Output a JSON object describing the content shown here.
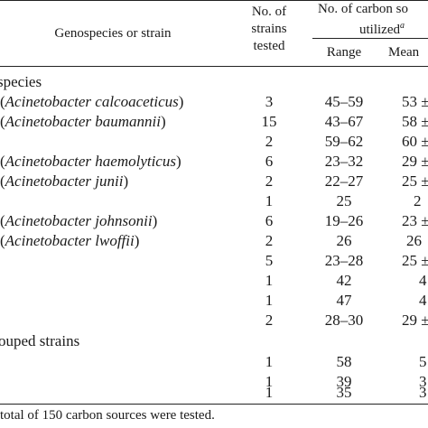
{
  "table": {
    "headers": {
      "strain": "Genospecies or strain",
      "tested_line1": "No. of",
      "tested_line2": "strains",
      "tested_line3": "tested",
      "carbon_line1": "No. of carbon so",
      "carbon_line2": "utilized",
      "carbon_sup": "a",
      "range": "Range",
      "mean": "Mean"
    },
    "section_species": "species",
    "section_ungrouped": "ouped strains",
    "rows": [
      {
        "prefix": "(",
        "name": "Acinetobacter calcoaceticus",
        "suffix": ")",
        "tested": "3",
        "range": "45–59",
        "mean": "53 ±"
      },
      {
        "prefix": "(",
        "name": "Acinetobacter baumannii",
        "suffix": ")",
        "tested": "15",
        "range": "43–67",
        "mean": "58 ±"
      },
      {
        "prefix": "",
        "name": "",
        "suffix": "",
        "tested": "2",
        "range": "59–62",
        "mean": "60 ±"
      },
      {
        "prefix": "(",
        "name": "Acinetobacter haemolyticus",
        "suffix": ")",
        "tested": "6",
        "range": "23–32",
        "mean": "29 ±"
      },
      {
        "prefix": "(",
        "name": "Acinetobacter junii",
        "suffix": ")",
        "tested": "2",
        "range": "22–27",
        "mean": "25 ±"
      },
      {
        "prefix": "",
        "name": "",
        "suffix": "",
        "tested": "1",
        "range": "25",
        "mean": "2"
      },
      {
        "prefix": "(",
        "name": "Acinetobacter johnsonii",
        "suffix": ")",
        "tested": "6",
        "range": "19–26",
        "mean": "23 ±"
      },
      {
        "prefix": "(",
        "name": "Acinetobacter lwoffii",
        "suffix": ")",
        "tested": "2",
        "range": "26",
        "mean": "26"
      },
      {
        "prefix": "",
        "name": "",
        "suffix": "",
        "tested": "5",
        "range": "23–28",
        "mean": "25 ±"
      },
      {
        "prefix": "",
        "name": "",
        "suffix": "",
        "tested": "1",
        "range": "42",
        "mean": "4"
      },
      {
        "prefix": "",
        "name": "",
        "suffix": "",
        "tested": "1",
        "range": "47",
        "mean": "4"
      },
      {
        "prefix": "",
        "name": "",
        "suffix": "",
        "tested": "2",
        "range": "28–30",
        "mean": "29 ±"
      },
      {
        "prefix": "",
        "name": "",
        "suffix": "",
        "tested": "1",
        "range": "58",
        "mean": "5"
      },
      {
        "prefix": "",
        "name": "",
        "suffix": "",
        "tested": "1",
        "range": "39",
        "mean": "3"
      },
      {
        "prefix": "",
        "name": "",
        "suffix": "",
        "tested": "1",
        "range": "35",
        "mean": "3"
      }
    ],
    "footnote": "total of 150 carbon sources were tested."
  }
}
